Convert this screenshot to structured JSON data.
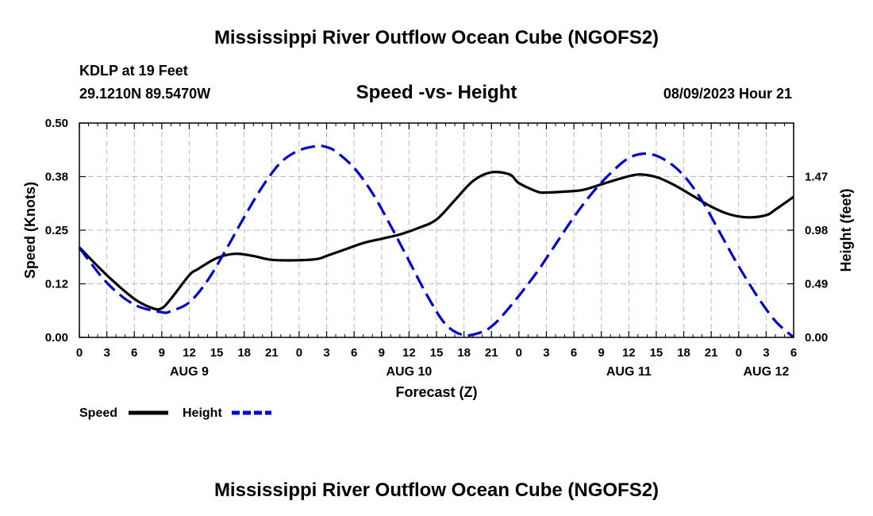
{
  "title": "Mississippi River Outflow Ocean Cube (NGOFS2)",
  "footer_title": "Mississippi River Outflow Ocean Cube (NGOFS2)",
  "station": "KDLP at 19 Feet",
  "coords": "29.1210N  89.5470W",
  "subtitle": "Speed -vs- Height",
  "timestamp": "08/09/2023 Hour 21",
  "colors": {
    "speed": "#000000",
    "height": "#0000cc",
    "grid": "#bbbbbb"
  },
  "chart_data": {
    "type": "line",
    "xlabel": "Forecast (Z)",
    "ylabel": "Speed (Knots)",
    "y2label": "Height (feet)",
    "x_range_hours": [
      0,
      78
    ],
    "x_tick_hours": [
      0,
      3,
      6,
      9,
      12,
      15,
      18,
      21,
      24,
      27,
      30,
      33,
      36,
      39,
      42,
      45,
      48,
      51,
      54,
      57,
      60,
      63,
      66,
      69,
      72,
      75,
      78
    ],
    "x_tick_labels": [
      "0",
      "3",
      "6",
      "9",
      "12",
      "15",
      "18",
      "21",
      "0",
      "3",
      "6",
      "9",
      "12",
      "15",
      "18",
      "21",
      "0",
      "3",
      "6",
      "9",
      "12",
      "15",
      "18",
      "21",
      "0",
      "3",
      "6"
    ],
    "day_labels": [
      {
        "hour": 12,
        "label": "AUG 9"
      },
      {
        "hour": 36,
        "label": "AUG 10"
      },
      {
        "hour": 60,
        "label": "AUG 11"
      },
      {
        "hour": 75,
        "label": "AUG 12"
      }
    ],
    "ylim": [
      0,
      0.5
    ],
    "y_ticks": [
      0,
      0.125,
      0.25,
      0.375,
      0.5
    ],
    "y_tick_labels": [
      "0.00",
      "0.12",
      "0.25",
      "0.38",
      "0.50"
    ],
    "y2lim": [
      0,
      1.96
    ],
    "y2_ticks": [
      0,
      0.49,
      0.98,
      1.47
    ],
    "y2_tick_labels": [
      "0.00",
      "0.49",
      "0.98",
      "1.47"
    ],
    "series": [
      {
        "name": "Speed",
        "axis": "left",
        "style": "solid",
        "x": [
          0,
          3,
          6,
          8,
          9,
          10,
          12,
          13,
          15,
          17,
          19,
          21,
          24,
          26,
          27,
          29,
          31,
          33,
          35,
          37,
          39,
          41,
          43,
          45,
          47,
          48,
          50,
          51,
          53,
          55,
          57,
          59,
          61,
          63,
          65,
          67,
          69,
          71,
          73,
          75,
          76,
          78
        ],
        "y": [
          0.21,
          0.145,
          0.09,
          0.068,
          0.068,
          0.09,
          0.145,
          0.16,
          0.185,
          0.195,
          0.19,
          0.181,
          0.18,
          0.183,
          0.19,
          0.205,
          0.22,
          0.23,
          0.24,
          0.255,
          0.275,
          0.32,
          0.365,
          0.385,
          0.38,
          0.36,
          0.34,
          0.338,
          0.34,
          0.344,
          0.357,
          0.37,
          0.38,
          0.374,
          0.355,
          0.33,
          0.305,
          0.287,
          0.28,
          0.285,
          0.298,
          0.328
        ]
      },
      {
        "name": "Height",
        "axis": "right",
        "style": "dashed",
        "x": [
          0,
          3,
          6,
          9,
          10,
          12,
          14,
          16,
          18,
          20,
          22,
          24,
          26,
          27,
          28,
          30,
          32,
          34,
          36,
          38,
          40,
          42,
          44,
          45,
          46,
          48,
          50,
          52,
          54,
          56,
          58,
          60,
          62,
          64,
          66,
          68,
          70,
          72,
          74,
          76,
          78
        ],
        "y": [
          0.82,
          0.5,
          0.3,
          0.23,
          0.24,
          0.32,
          0.52,
          0.8,
          1.1,
          1.38,
          1.6,
          1.71,
          1.75,
          1.74,
          1.7,
          1.55,
          1.32,
          1.02,
          0.7,
          0.38,
          0.12,
          0.02,
          0.05,
          0.1,
          0.18,
          0.38,
          0.6,
          0.85,
          1.1,
          1.32,
          1.5,
          1.64,
          1.68,
          1.62,
          1.48,
          1.25,
          0.95,
          0.65,
          0.38,
          0.15,
          0.0
        ]
      }
    ],
    "legend": [
      {
        "name": "Speed",
        "style": "solid"
      },
      {
        "name": "Height",
        "style": "dashed"
      }
    ],
    "legend_position": "bottom-left",
    "grid": true
  }
}
